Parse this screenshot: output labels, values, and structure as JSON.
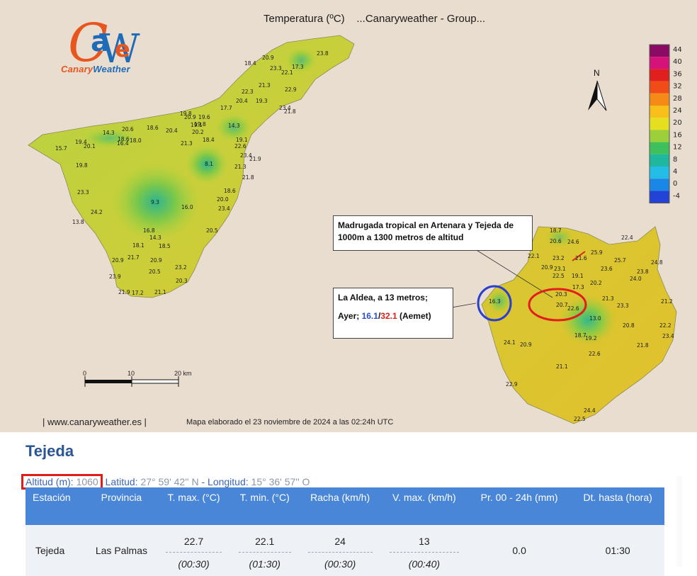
{
  "map": {
    "title": "Temperatura (ºC)    ...Canaryweather - Group...",
    "logo_letters": "CaWe",
    "logo_brand_1": "Canary",
    "logo_brand_2": "Weather",
    "north_label": "N",
    "legend_ticks": [
      "44",
      "40",
      "36",
      "32",
      "28",
      "24",
      "20",
      "16",
      "12",
      "8",
      "4",
      "0",
      "-4"
    ],
    "legend_colors": [
      "#8b0a63",
      "#d4127a",
      "#e21f1f",
      "#ef4c18",
      "#f58a17",
      "#f9bf1a",
      "#e6df20",
      "#9bd03a",
      "#3ec15d",
      "#1fb79d",
      "#23bde6",
      "#1a86e6",
      "#2342d6"
    ],
    "scale_labels": [
      "0",
      "10",
      "20 km"
    ],
    "footer_url": "| www.canaryweather.es |",
    "footer_text": "Mapa elaborado el 23 noviembre de 2024 a las 02:24h UTC",
    "callout_1": "Madrugada tropical en Artenara y Tejeda de 1000m a 1300 metros de altitud",
    "callout_2_line1": "La Aldea, a 13 metros;",
    "callout_2_prefix": "Ayer; ",
    "callout_2_min": "16.1",
    "callout_2_sep": "/",
    "callout_2_max": "32.1",
    "callout_2_suffix": " (Aemet)",
    "tenerife_labels": [
      "20.9",
      "23.8",
      "18.4",
      "23.3",
      "17.3",
      "22.1",
      "21.3",
      "22.3",
      "22.9",
      "20.4",
      "19.3",
      "23.4",
      "21.8",
      "17.7",
      "19.8",
      "20.9",
      "19.6",
      "19.8",
      "19.1",
      "18.6",
      "20.4",
      "20.2",
      "14.3",
      "19.1",
      "20.6",
      "18.6",
      "14.3",
      "19.4",
      "18.0",
      "18.4",
      "15.7",
      "20.1",
      "16.4",
      "21.3",
      "22.6",
      "23.4",
      "21.9",
      "8.1",
      "21.3",
      "19.8",
      "21.8",
      "18.6",
      "20.0",
      "23.3",
      "23.4",
      "24.2",
      "9.3",
      "16.0",
      "13.8",
      "20.5",
      "16.8",
      "14.3",
      "18.1",
      "18.5",
      "20.9",
      "21.7",
      "20.9",
      "23.2",
      "20.5",
      "23.9",
      "20.3",
      "21.9",
      "17.2",
      "21.1"
    ],
    "grancanaria_labels": [
      "18.7",
      "22.4",
      "24.6",
      "20.6",
      "22.1",
      "25.9",
      "24.8",
      "23.2",
      "21.6",
      "25.7",
      "23.6",
      "23.1",
      "20.9",
      "23.8",
      "22.5",
      "19.1",
      "20.2",
      "24.0",
      "17.3",
      "20.3",
      "21.3",
      "23.3",
      "16.3",
      "20.7",
      "22.6",
      "21.2",
      "13.0",
      "20.8",
      "22.2",
      "18.7",
      "19.2",
      "23.4",
      "24.1",
      "20.9",
      "21.8",
      "22.6",
      "21.1",
      "22.9",
      "24.4",
      "22.5"
    ]
  },
  "station": {
    "name": "Tejeda",
    "alt_label": "Altitud (m)",
    "alt_value": "1060",
    "lat_label": "Latitud",
    "lat_value": "27° 59' 42'' N",
    "lon_label": "Longitud",
    "lon_value": "15° 36' 57'' O",
    "sep": " - "
  },
  "table": {
    "headers": [
      "Estación",
      "Provincia",
      "T. max. (°C)",
      "T. min. (°C)",
      "Racha (km/h)",
      "V. max. (km/h)",
      "Pr. 00 - 24h (mm)",
      "Dt. hasta (hora)"
    ],
    "row": {
      "estacion": "Tejeda",
      "provincia": "Las Palmas",
      "tmax": "22.7",
      "tmax_time": "(00:30)",
      "tmin": "22.1",
      "tmin_time": "(01:30)",
      "racha": "24",
      "racha_time": "(00:30)",
      "vmax": "13",
      "vmax_time": "(00:40)",
      "pr": "0.0",
      "dt": "01:30"
    }
  }
}
